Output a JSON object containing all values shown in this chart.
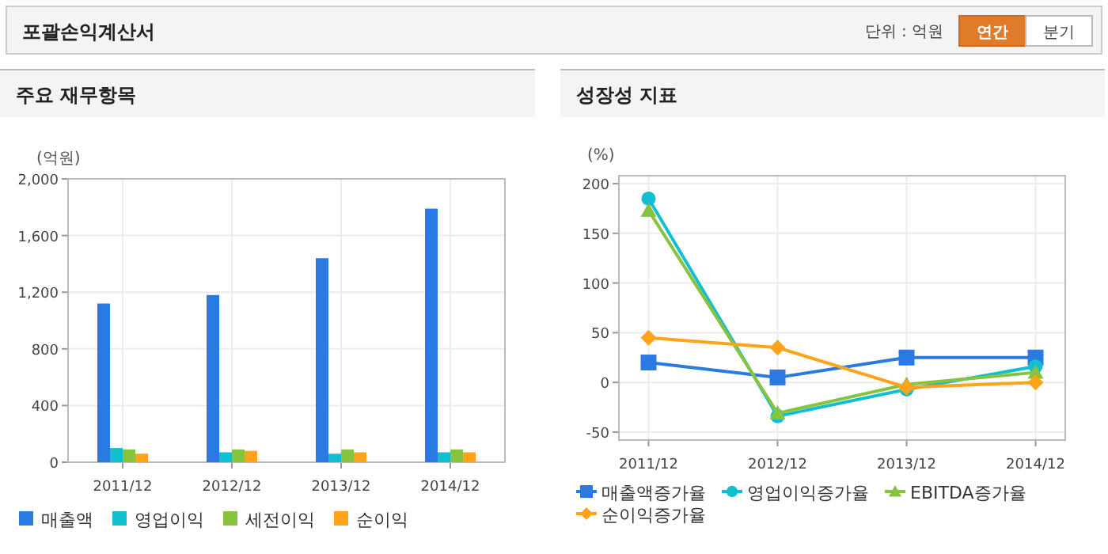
{
  "chart_data": [
    {
      "type": "other",
      "title": "포괄손익계산서",
      "annotations": [
        "단위 : 억원",
        "연간",
        "분기"
      ]
    },
    {
      "type": "bar",
      "title": "주요 재무항목",
      "ylabel": "(억원)",
      "categories": [
        "2011/12",
        "2012/12",
        "2013/12",
        "2014/12"
      ],
      "series": [
        {
          "name": "매출액",
          "color": "#2a7ae2",
          "values": [
            1120,
            1180,
            1440,
            1790
          ]
        },
        {
          "name": "영업이익",
          "color": "#12bfd1",
          "values": [
            100,
            70,
            60,
            70
          ]
        },
        {
          "name": "세전이익",
          "color": "#86c440",
          "values": [
            90,
            90,
            90,
            90
          ]
        },
        {
          "name": "순이익",
          "color": "#ffa31a",
          "values": [
            60,
            80,
            70,
            70
          ]
        }
      ],
      "ylim": [
        0,
        2000
      ],
      "yticks": [
        0,
        400,
        800,
        {
          "value": 1200,
          "label": "1,200"
        },
        {
          "value": 1600,
          "label": "1,600"
        },
        {
          "value": 2000,
          "label": "2,000"
        }
      ],
      "grid": true,
      "legend": "bottom"
    },
    {
      "type": "line",
      "title": "성장성 지표",
      "ylabel": "(%)",
      "categories": [
        "2011/12",
        "2012/12",
        "2013/12",
        "2014/12"
      ],
      "series": [
        {
          "name": "매출액증가율",
          "color": "#2a7ae2",
          "marker": "square",
          "values": [
            20,
            5,
            25,
            25
          ]
        },
        {
          "name": "영업이익증가율",
          "color": "#12bfd1",
          "marker": "circle",
          "values": [
            185,
            -34,
            -7,
            16
          ]
        },
        {
          "name": "EBITDA증가율",
          "color": "#86c440",
          "marker": "triangle",
          "values": [
            173,
            -31,
            -2,
            10
          ]
        },
        {
          "name": "순이익증가율",
          "color": "#ffa31a",
          "marker": "diamond",
          "values": [
            45,
            35,
            -5,
            0
          ]
        }
      ],
      "ylim": [
        -58,
        208
      ],
      "yticks": [
        -50,
        0,
        50,
        100,
        150,
        200
      ],
      "grid": true,
      "legend": "bottom"
    }
  ]
}
